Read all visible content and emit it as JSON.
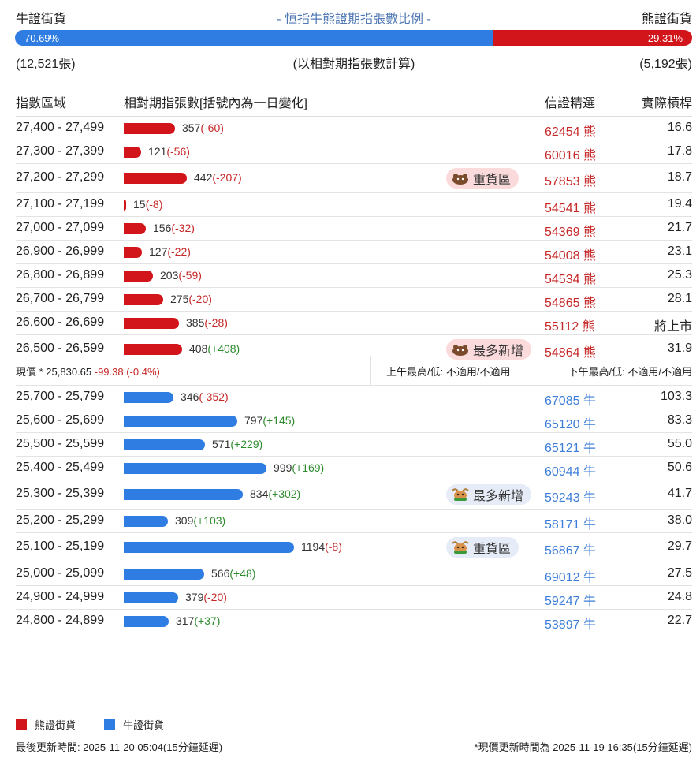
{
  "header": {
    "bull_label": "牛證街貨",
    "title": "- 恒指牛熊證期指張數比例 -",
    "bear_label": "熊證街貨"
  },
  "ratio": {
    "bull_pct": "70.69%",
    "bull_fraction": 0.7069,
    "bear_pct": "29.31%"
  },
  "counts": {
    "bull_count": "(12,521張)",
    "note": "(以相對期指張數計算)",
    "bear_count": "(5,192張)"
  },
  "table_header": {
    "col_range": "指數區域",
    "col_qty": "相對期指張數[括號內為一日變化]",
    "col_pick": "信證精選",
    "col_lev": "實際槓桿"
  },
  "colors": {
    "bear": "#d2151b",
    "bull": "#2f7de3"
  },
  "bear_rows": [
    {
      "range": "27,400 - 27,499",
      "qty": 357,
      "qty_text": "357",
      "chg": "(-60)",
      "chg_sign": "neg",
      "code": "62454 熊",
      "lev": "16.6",
      "badge": ""
    },
    {
      "range": "27,300 - 27,399",
      "qty": 121,
      "qty_text": "121",
      "chg": "(-56)",
      "chg_sign": "neg",
      "code": "60016 熊",
      "lev": "17.8",
      "badge": ""
    },
    {
      "range": "27,200 - 27,299",
      "qty": 442,
      "qty_text": "442",
      "chg": "(-207)",
      "chg_sign": "neg",
      "code": "57853 熊",
      "lev": "18.7",
      "badge": "重貨區"
    },
    {
      "range": "27,100 - 27,199",
      "qty": 15,
      "qty_text": "15",
      "chg": "(-8)",
      "chg_sign": "neg",
      "code": "54541 熊",
      "lev": "19.4",
      "badge": ""
    },
    {
      "range": "27,000 - 27,099",
      "qty": 156,
      "qty_text": "156",
      "chg": "(-32)",
      "chg_sign": "neg",
      "code": "54369 熊",
      "lev": "21.7",
      "badge": ""
    },
    {
      "range": "26,900 - 26,999",
      "qty": 127,
      "qty_text": "127",
      "chg": "(-22)",
      "chg_sign": "neg",
      "code": "54008 熊",
      "lev": "23.1",
      "badge": ""
    },
    {
      "range": "26,800 - 26,899",
      "qty": 203,
      "qty_text": "203",
      "chg": "(-59)",
      "chg_sign": "neg",
      "code": "54534 熊",
      "lev": "25.3",
      "badge": ""
    },
    {
      "range": "26,700 - 26,799",
      "qty": 275,
      "qty_text": "275",
      "chg": "(-20)",
      "chg_sign": "neg",
      "code": "54865 熊",
      "lev": "28.1",
      "badge": ""
    },
    {
      "range": "26,600 - 26,699",
      "qty": 385,
      "qty_text": "385",
      "chg": "(-28)",
      "chg_sign": "neg",
      "code": "55112 熊",
      "lev": "將上市",
      "badge": ""
    },
    {
      "range": "26,500 - 26,599",
      "qty": 408,
      "qty_text": "408",
      "chg": "(+408)",
      "chg_sign": "pos",
      "code": "54864 熊",
      "lev": "31.9",
      "badge": "最多新增"
    }
  ],
  "spot": {
    "label": "現價 *  25,830.65",
    "change": " -99.38 (-0.4%)",
    "am": "上午最高/低: 不適用/不適用",
    "pm": "下午最高/低: 不適用/不適用"
  },
  "bull_rows": [
    {
      "range": "25,700 - 25,799",
      "qty": 346,
      "qty_text": "346",
      "chg": "(-352)",
      "chg_sign": "neg",
      "code": "67085 牛",
      "lev": "103.3",
      "badge": ""
    },
    {
      "range": "25,600 - 25,699",
      "qty": 797,
      "qty_text": "797",
      "chg": "(+145)",
      "chg_sign": "pos",
      "code": "65120 牛",
      "lev": "83.3",
      "badge": ""
    },
    {
      "range": "25,500 - 25,599",
      "qty": 571,
      "qty_text": "571",
      "chg": "(+229)",
      "chg_sign": "pos",
      "code": "65121 牛",
      "lev": "55.0",
      "badge": ""
    },
    {
      "range": "25,400 - 25,499",
      "qty": 999,
      "qty_text": "999",
      "chg": "(+169)",
      "chg_sign": "pos",
      "code": "60944 牛",
      "lev": "50.6",
      "badge": ""
    },
    {
      "range": "25,300 - 25,399",
      "qty": 834,
      "qty_text": "834",
      "chg": "(+302)",
      "chg_sign": "pos",
      "code": "59243 牛",
      "lev": "41.7",
      "badge": "最多新增"
    },
    {
      "range": "25,200 - 25,299",
      "qty": 309,
      "qty_text": "309",
      "chg": "(+103)",
      "chg_sign": "pos",
      "code": "58171 牛",
      "lev": "38.0",
      "badge": ""
    },
    {
      "range": "25,100 - 25,199",
      "qty": 1194,
      "qty_text": "1194",
      "chg": "(-8)",
      "chg_sign": "neg",
      "code": "56867 牛",
      "lev": "29.7",
      "badge": "重貨區"
    },
    {
      "range": "25,000 - 25,099",
      "qty": 566,
      "qty_text": "566",
      "chg": "(+48)",
      "chg_sign": "pos",
      "code": "69012 牛",
      "lev": "27.5",
      "badge": ""
    },
    {
      "range": "24,900 - 24,999",
      "qty": 379,
      "qty_text": "379",
      "chg": "(-20)",
      "chg_sign": "neg",
      "code": "59247 牛",
      "lev": "24.8",
      "badge": ""
    },
    {
      "range": "24,800 - 24,899",
      "qty": 317,
      "qty_text": "317",
      "chg": "(+37)",
      "chg_sign": "pos",
      "code": "53897 牛",
      "lev": "22.7",
      "badge": ""
    }
  ],
  "legend": {
    "bear": "熊證街貨",
    "bull": "牛證街貨"
  },
  "footer": {
    "updated": "最後更新時間: 2025-11-20 05:04(15分鐘延遲)",
    "spot_updated": "*現價更新時間為 2025-11-19 16:35(15分鐘延遲)"
  }
}
